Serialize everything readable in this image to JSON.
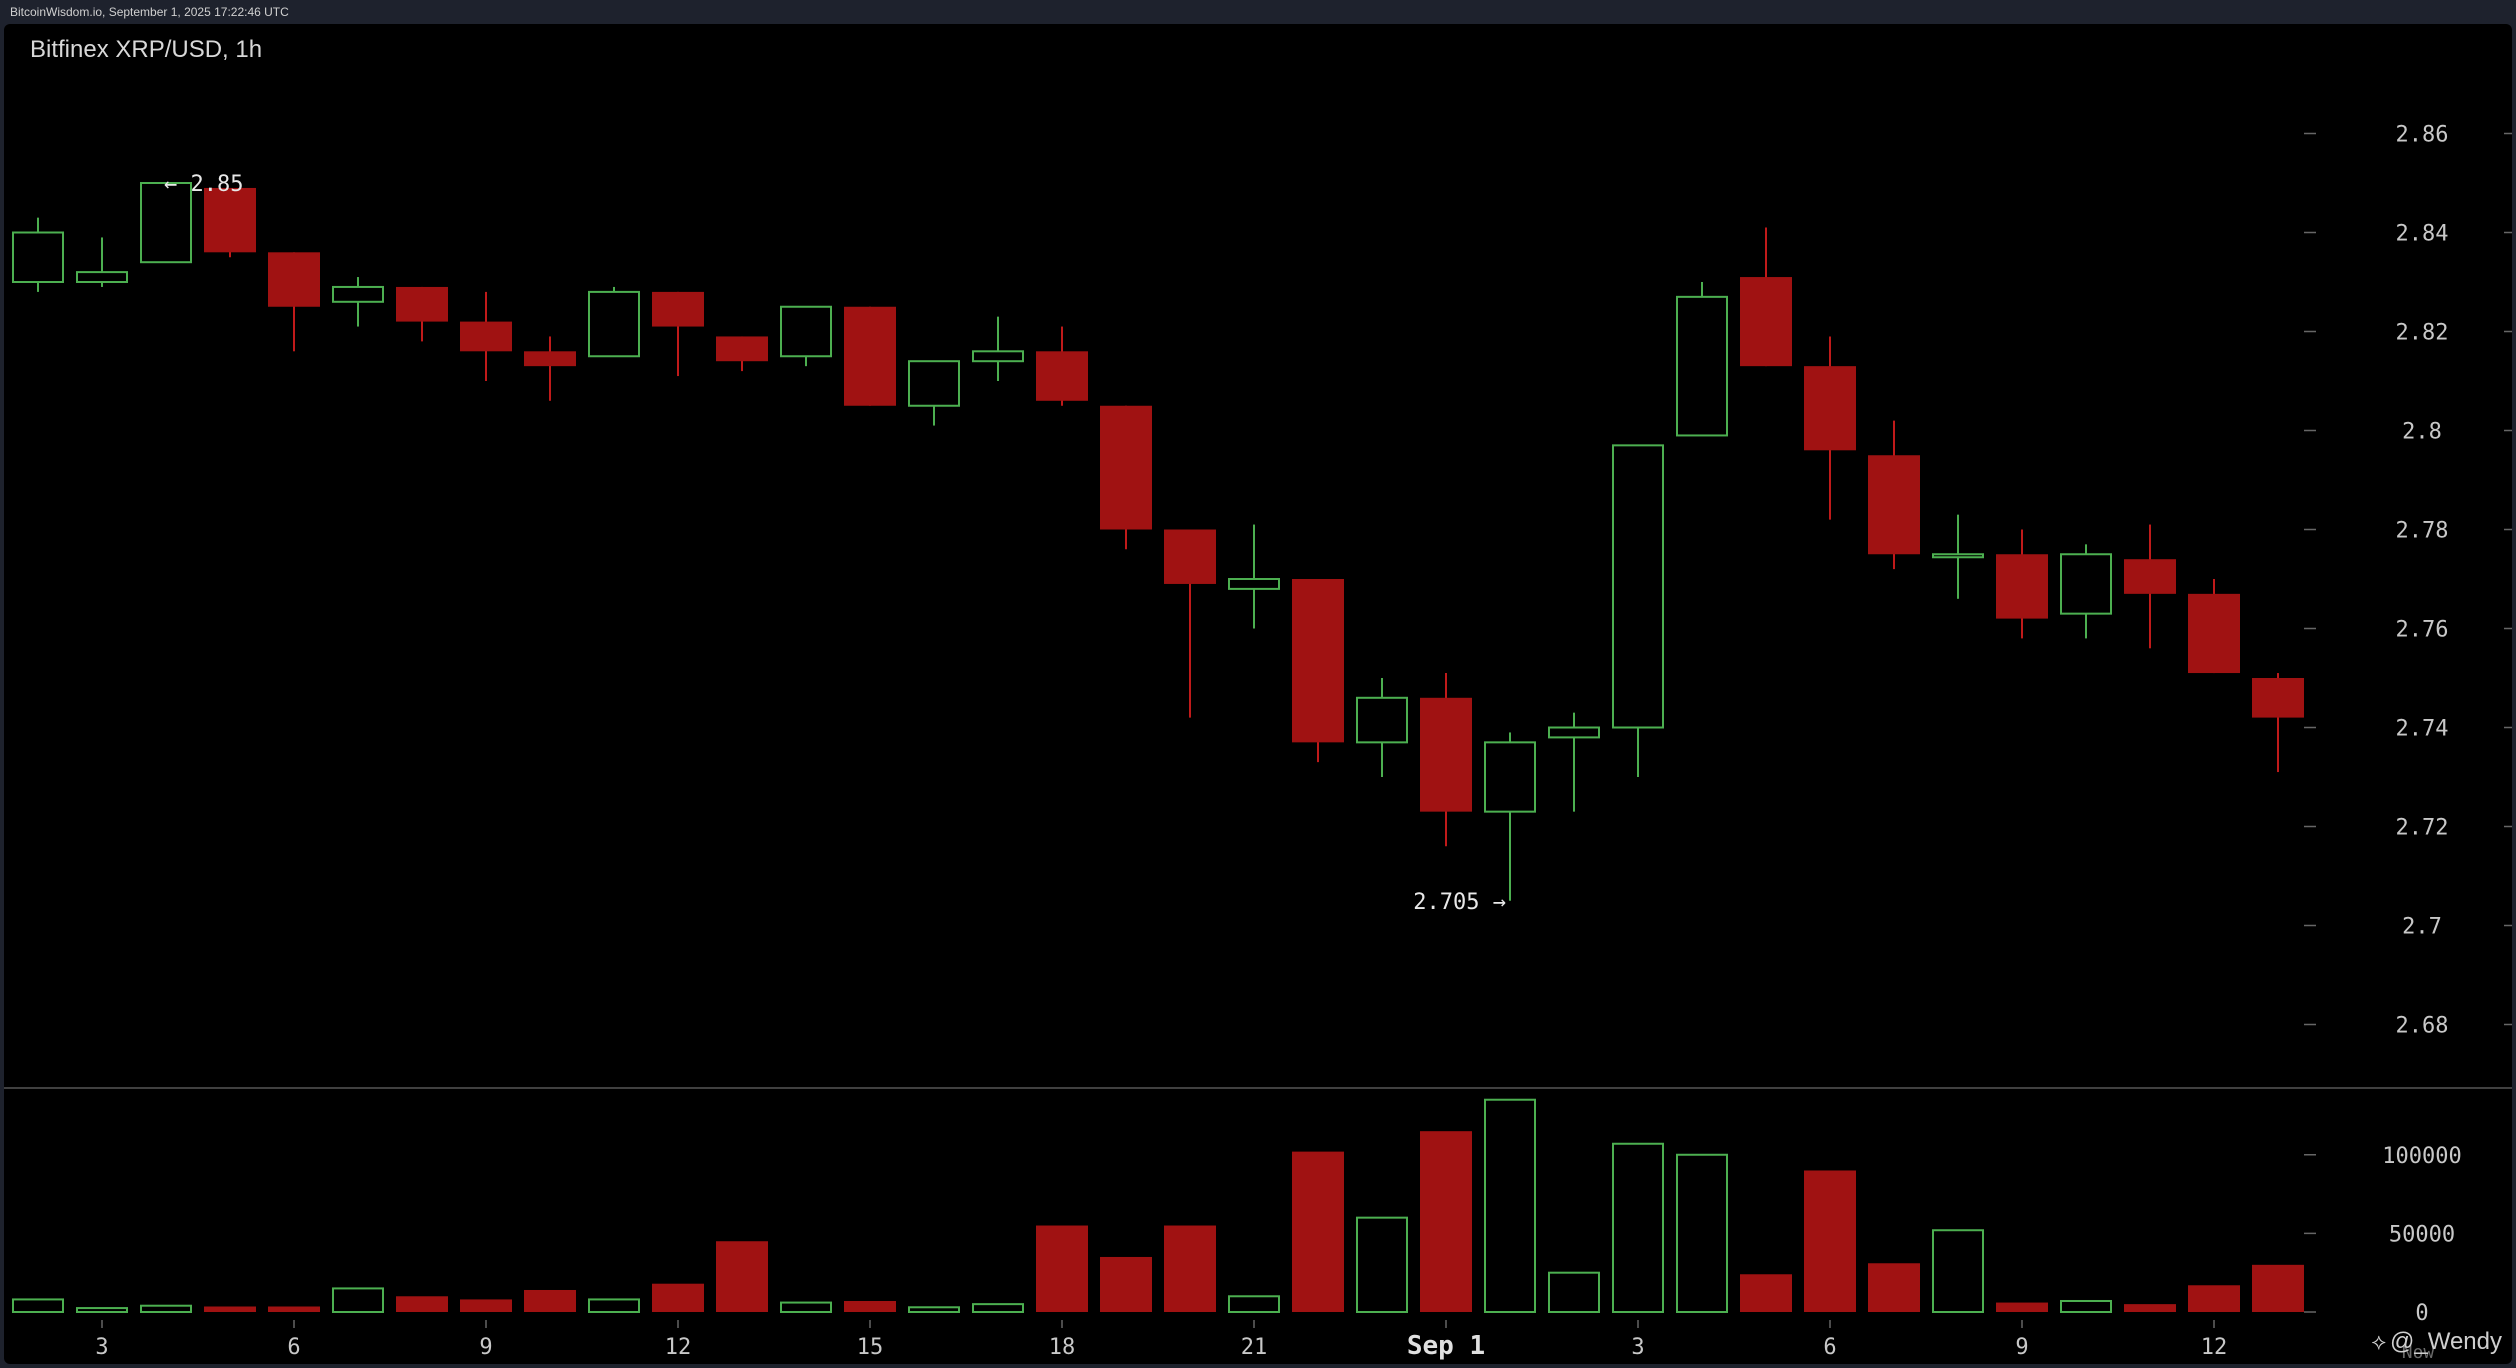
{
  "header": {
    "source": "BitcoinWisdom.io, September 1, 2025 17:22:46 UTC",
    "title": "Bitfinex XRP/USD, 1h"
  },
  "watermark": {
    "icon": "binance-diamond-icon",
    "text": "@_Wendy",
    "partial_label": "Now"
  },
  "colors": {
    "up": "#4caf50",
    "down": "#a01212",
    "grid_tick": "#666666",
    "axis_text": "#c8c8c8",
    "separator": "#555555"
  },
  "chart_data": {
    "type": "candlestick",
    "title": "Bitfinex XRP/USD, 1h",
    "price_axis": {
      "min": 2.67,
      "max": 2.87,
      "ticks": [
        2.68,
        2.7,
        2.72,
        2.74,
        2.76,
        2.78,
        2.8,
        2.82,
        2.84,
        2.86
      ],
      "tick_labels": [
        "2.68",
        "2.7",
        "2.72",
        "2.74",
        "2.76",
        "2.78",
        "2.8",
        "2.82",
        "2.84",
        "2.86"
      ]
    },
    "volume_axis": {
      "min": 0,
      "max": 145000,
      "ticks": [
        0,
        50000,
        100000
      ],
      "tick_labels": [
        "0",
        "50000",
        "100000"
      ]
    },
    "x_labels": [
      {
        "index": 1,
        "label": "3"
      },
      {
        "index": 4,
        "label": "6"
      },
      {
        "index": 7,
        "label": "9"
      },
      {
        "index": 10,
        "label": "12"
      },
      {
        "index": 13,
        "label": "15"
      },
      {
        "index": 16,
        "label": "18"
      },
      {
        "index": 19,
        "label": "21"
      },
      {
        "index": 22,
        "label": "Sep 1",
        "bold": true
      },
      {
        "index": 25,
        "label": "3"
      },
      {
        "index": 28,
        "label": "6"
      },
      {
        "index": 31,
        "label": "9"
      },
      {
        "index": 34,
        "label": "12"
      }
    ],
    "annotations": [
      {
        "text": "← 2.85",
        "index": 2,
        "price": 2.85,
        "side": "right"
      },
      {
        "text": "2.705 →",
        "index": 23,
        "price": 2.705,
        "side": "left"
      }
    ],
    "candles": [
      {
        "o": 2.83,
        "h": 2.843,
        "l": 2.828,
        "c": 2.84,
        "v": 8000
      },
      {
        "o": 2.83,
        "h": 2.839,
        "l": 2.829,
        "c": 2.832,
        "v": 2500
      },
      {
        "o": 2.834,
        "h": 2.85,
        "l": 2.834,
        "c": 2.85,
        "v": 4000
      },
      {
        "o": 2.849,
        "h": 2.849,
        "l": 2.835,
        "c": 2.836,
        "v": 3500
      },
      {
        "o": 2.836,
        "h": 2.836,
        "l": 2.816,
        "c": 2.825,
        "v": 3500
      },
      {
        "o": 2.826,
        "h": 2.831,
        "l": 2.821,
        "c": 2.829,
        "v": 15000
      },
      {
        "o": 2.829,
        "h": 2.829,
        "l": 2.818,
        "c": 2.822,
        "v": 10000
      },
      {
        "o": 2.822,
        "h": 2.828,
        "l": 2.81,
        "c": 2.816,
        "v": 8000
      },
      {
        "o": 2.816,
        "h": 2.819,
        "l": 2.806,
        "c": 2.813,
        "v": 14000
      },
      {
        "o": 2.815,
        "h": 2.829,
        "l": 2.815,
        "c": 2.828,
        "v": 8000
      },
      {
        "o": 2.828,
        "h": 2.828,
        "l": 2.811,
        "c": 2.821,
        "v": 18000
      },
      {
        "o": 2.819,
        "h": 2.819,
        "l": 2.812,
        "c": 2.814,
        "v": 45000
      },
      {
        "o": 2.815,
        "h": 2.825,
        "l": 2.813,
        "c": 2.825,
        "v": 6000
      },
      {
        "o": 2.825,
        "h": 2.825,
        "l": 2.805,
        "c": 2.805,
        "v": 7000
      },
      {
        "o": 2.805,
        "h": 2.814,
        "l": 2.801,
        "c": 2.814,
        "v": 3000
      },
      {
        "o": 2.814,
        "h": 2.823,
        "l": 2.81,
        "c": 2.816,
        "v": 5000
      },
      {
        "o": 2.816,
        "h": 2.821,
        "l": 2.805,
        "c": 2.806,
        "v": 55000
      },
      {
        "o": 2.805,
        "h": 2.805,
        "l": 2.776,
        "c": 2.78,
        "v": 35000
      },
      {
        "o": 2.78,
        "h": 2.78,
        "l": 2.742,
        "c": 2.769,
        "v": 55000
      },
      {
        "o": 2.768,
        "h": 2.781,
        "l": 2.76,
        "c": 2.77,
        "v": 10000
      },
      {
        "o": 2.77,
        "h": 2.77,
        "l": 2.733,
        "c": 2.737,
        "v": 102000
      },
      {
        "o": 2.737,
        "h": 2.75,
        "l": 2.73,
        "c": 2.746,
        "v": 60000
      },
      {
        "o": 2.746,
        "h": 2.751,
        "l": 2.716,
        "c": 2.723,
        "v": 115000
      },
      {
        "o": 2.723,
        "h": 2.739,
        "l": 2.705,
        "c": 2.737,
        "v": 135000
      },
      {
        "o": 2.738,
        "h": 2.743,
        "l": 2.723,
        "c": 2.74,
        "v": 25000
      },
      {
        "o": 2.74,
        "h": 2.797,
        "l": 2.73,
        "c": 2.797,
        "v": 107000
      },
      {
        "o": 2.799,
        "h": 2.83,
        "l": 2.799,
        "c": 2.827,
        "v": 100000
      },
      {
        "o": 2.831,
        "h": 2.841,
        "l": 2.813,
        "c": 2.813,
        "v": 24000
      },
      {
        "o": 2.813,
        "h": 2.819,
        "l": 2.782,
        "c": 2.796,
        "v": 90000
      },
      {
        "o": 2.795,
        "h": 2.802,
        "l": 2.772,
        "c": 2.775,
        "v": 31000
      },
      {
        "o": 2.775,
        "h": 2.783,
        "l": 2.766,
        "c": 2.775,
        "v": 52000
      },
      {
        "o": 2.775,
        "h": 2.78,
        "l": 2.758,
        "c": 2.762,
        "v": 6000
      },
      {
        "o": 2.763,
        "h": 2.777,
        "l": 2.758,
        "c": 2.775,
        "v": 7000
      },
      {
        "o": 2.774,
        "h": 2.781,
        "l": 2.756,
        "c": 2.767,
        "v": 5000
      },
      {
        "o": 2.767,
        "h": 2.77,
        "l": 2.751,
        "c": 2.751,
        "v": 17000
      },
      {
        "o": 2.75,
        "h": 2.751,
        "l": 2.731,
        "c": 2.742,
        "v": 30000
      }
    ]
  }
}
